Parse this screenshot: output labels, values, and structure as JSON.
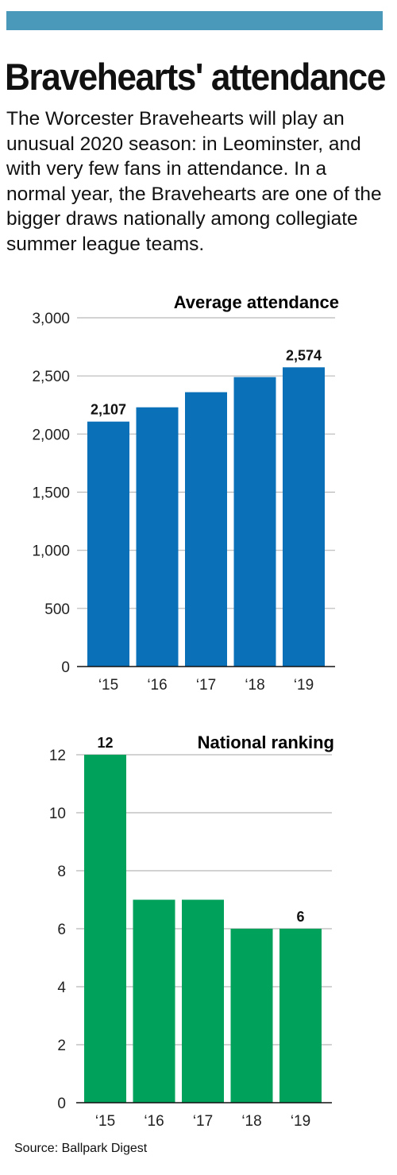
{
  "headline": "Bravehearts' attendance",
  "intro": "The Worcester Bravehearts will play an unusual 2020 season: in Leominster, and with very few fans in attendance. In a normal year, the Bravehearts are one of the bigger draws nationally among collegiate summer league teams.",
  "source": "Source: Ballpark Digest",
  "colors": {
    "top_bar": "#4a98ba",
    "attendance_bar": "#0a70b8",
    "ranking_bar": "#00a15b",
    "grid": "#b8b8b8"
  },
  "chart_data": [
    {
      "type": "bar",
      "title": "Average attendance",
      "categories": [
        "‘15",
        "‘16",
        "‘17",
        "‘18",
        "‘19"
      ],
      "values": [
        2107,
        2230,
        2360,
        2490,
        2574
      ],
      "data_labels": [
        "2,107",
        "",
        "",
        "",
        "2,574"
      ],
      "ylim": [
        0,
        3000
      ],
      "yticks": [
        0,
        500,
        1000,
        1500,
        2000,
        2500,
        3000
      ],
      "ytick_labels": [
        "0",
        "500",
        "1,000",
        "1,500",
        "2,000",
        "2,500",
        "3,000"
      ],
      "xlabel": "",
      "ylabel": "",
      "grid": true,
      "color": "#0a70b8"
    },
    {
      "type": "bar",
      "title": "National ranking",
      "categories": [
        "‘15",
        "‘16",
        "‘17",
        "‘18",
        "‘19"
      ],
      "values": [
        12,
        7,
        7,
        6,
        6
      ],
      "data_labels": [
        "12",
        "",
        "",
        "",
        "6"
      ],
      "ylim": [
        0,
        12
      ],
      "yticks": [
        0,
        2,
        4,
        6,
        8,
        10,
        12
      ],
      "ytick_labels": [
        "0",
        "2",
        "4",
        "6",
        "8",
        "10",
        "12"
      ],
      "xlabel": "",
      "ylabel": "",
      "grid": true,
      "color": "#00a15b"
    }
  ]
}
